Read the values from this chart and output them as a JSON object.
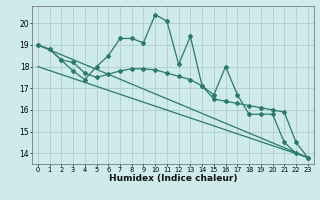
{
  "xlabel": "Humidex (Indice chaleur)",
  "x": [
    0,
    1,
    2,
    3,
    4,
    5,
    6,
    7,
    8,
    9,
    10,
    11,
    12,
    13,
    14,
    15,
    16,
    17,
    18,
    19,
    20,
    21,
    22,
    23
  ],
  "line_zigzag": [
    19.0,
    18.8,
    18.3,
    17.8,
    17.4,
    18.0,
    18.5,
    19.3,
    19.3,
    19.1,
    20.4,
    20.1,
    18.1,
    19.4,
    17.1,
    16.7,
    18.0,
    16.7,
    15.8,
    15.8,
    15.8,
    14.5,
    14.0,
    13.8
  ],
  "line_smooth": [
    19.0,
    18.8,
    18.3,
    18.2,
    17.7,
    17.5,
    17.65,
    17.8,
    17.9,
    17.9,
    17.85,
    17.7,
    17.55,
    17.4,
    17.1,
    16.5,
    16.4,
    16.3,
    16.2,
    16.1,
    16.0,
    15.9,
    14.5,
    13.8
  ],
  "trend1_x": [
    0,
    23
  ],
  "trend1_y": [
    19.0,
    13.8
  ],
  "trend2_x": [
    0,
    23
  ],
  "trend2_y": [
    18.0,
    13.8
  ],
  "bg_color": "#ceeaea",
  "grid_color": "#b0cccc",
  "line_color": "#2a7a6a",
  "ylim": [
    13.5,
    20.8
  ],
  "yticks": [
    14,
    15,
    16,
    17,
    18,
    19,
    20
  ],
  "xticks": [
    0,
    1,
    2,
    3,
    4,
    5,
    6,
    7,
    8,
    9,
    10,
    11,
    12,
    13,
    14,
    15,
    16,
    17,
    18,
    19,
    20,
    21,
    22,
    23
  ],
  "xlim": [
    -0.5,
    23.5
  ],
  "lw": 0.9,
  "ms": 2.0
}
